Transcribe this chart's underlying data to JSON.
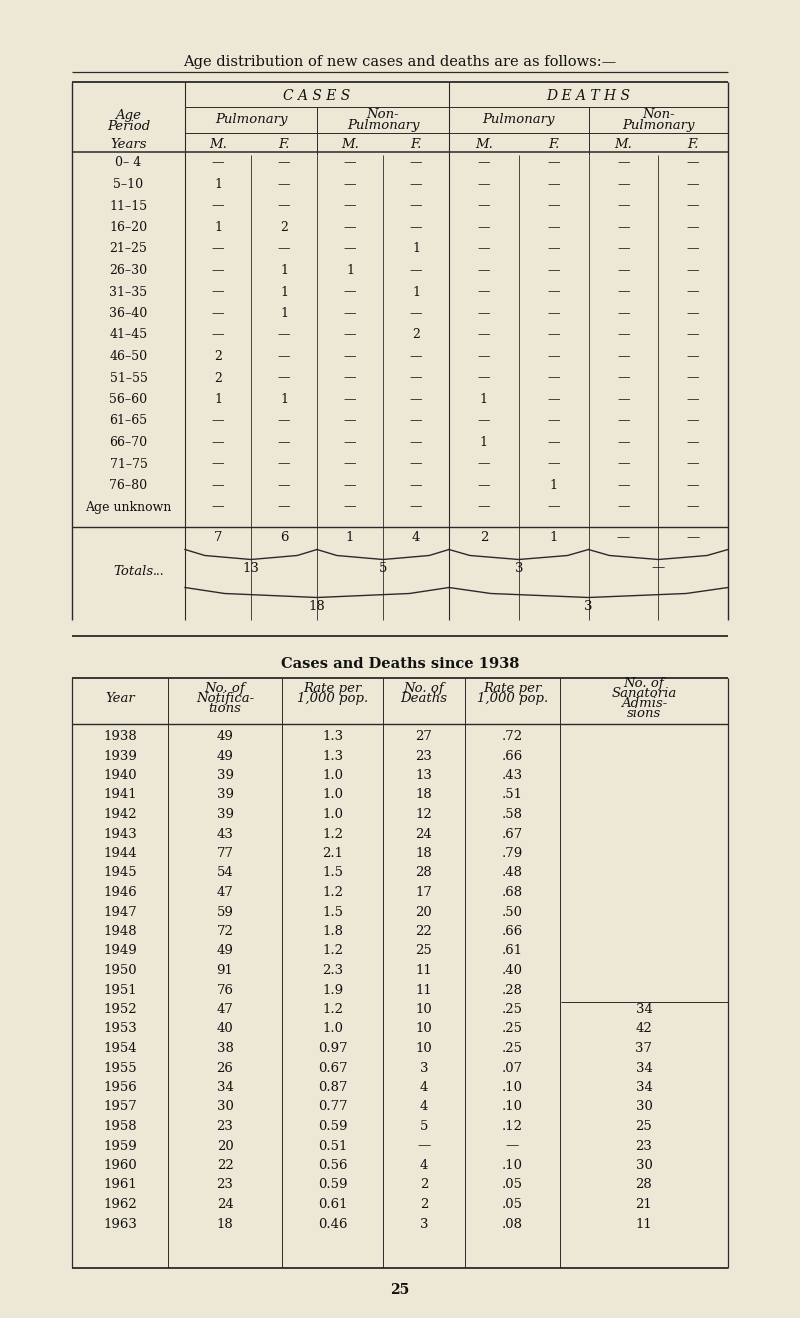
{
  "bg_color": "#ede8d5",
  "title_text": "Age distribution of new cases and deaths are as follows:—",
  "section2_title": "Cases and Deaths since 1938",
  "page_number": "25",
  "age_rows": [
    "0– 4",
    "5–10",
    "11–15",
    "16–20",
    "21–25",
    "26–30",
    "31–35",
    "36–40",
    "41–45",
    "46–50",
    "51–55",
    "56–60",
    "61–65",
    "66–70",
    "71–75",
    "76–80",
    "Age unknown"
  ],
  "cases_pulm_m": [
    "—",
    "1",
    "—",
    "1",
    "—",
    "—",
    "—",
    "—",
    "—",
    "2",
    "2",
    "1",
    "—",
    "—",
    "—",
    "—",
    "—"
  ],
  "cases_pulm_f": [
    "—",
    "—",
    "—",
    "2",
    "—",
    "1",
    "1",
    "1",
    "—",
    "—",
    "—",
    "1",
    "—",
    "—",
    "—",
    "—",
    "—"
  ],
  "cases_nonpulm_m": [
    "—",
    "—",
    "—",
    "—",
    "—",
    "1",
    "—",
    "—",
    "—",
    "—",
    "—",
    "—",
    "—",
    "—",
    "—",
    "—",
    "—"
  ],
  "cases_nonpulm_f": [
    "—",
    "—",
    "—",
    "—",
    "1",
    "—",
    "1",
    "—",
    "2",
    "—",
    "—",
    "—",
    "—",
    "—",
    "—",
    "—",
    "—"
  ],
  "deaths_pulm_m": [
    "—",
    "—",
    "—",
    "—",
    "—",
    "—",
    "—",
    "—",
    "—",
    "—",
    "—",
    "1",
    "—",
    "1",
    "—",
    "—",
    "—"
  ],
  "deaths_pulm_f": [
    "—",
    "—",
    "—",
    "—",
    "—",
    "—",
    "—",
    "—",
    "—",
    "—",
    "—",
    "—",
    "—",
    "—",
    "—",
    "1",
    "—"
  ],
  "deaths_nonpulm_m": [
    "—",
    "—",
    "—",
    "—",
    "—",
    "—",
    "—",
    "—",
    "—",
    "—",
    "—",
    "—",
    "—",
    "—",
    "—",
    "—",
    "—"
  ],
  "deaths_nonpulm_f": [
    "—",
    "—",
    "—",
    "—",
    "—",
    "—",
    "—",
    "—",
    "—",
    "—",
    "—",
    "—",
    "—",
    "—",
    "—",
    "—",
    "—"
  ],
  "totals_row": [
    "7",
    "6",
    "1",
    "4",
    "2",
    "1",
    "—",
    "—"
  ],
  "totals_sub1_cases_pulm": "13",
  "totals_sub1_cases_nonpulm": "5",
  "totals_sub1_deaths_pulm": "3",
  "totals_sub1_deaths_nonpulm": "—",
  "totals_sub2_cases": "18",
  "totals_sub2_deaths": "3",
  "years": [
    1938,
    1939,
    1940,
    1941,
    1942,
    1943,
    1944,
    1945,
    1946,
    1947,
    1948,
    1949,
    1950,
    1951,
    1952,
    1953,
    1954,
    1955,
    1956,
    1957,
    1958,
    1959,
    1960,
    1961,
    1962,
    1963
  ],
  "notif": [
    49,
    49,
    39,
    39,
    39,
    43,
    77,
    54,
    47,
    59,
    72,
    49,
    91,
    76,
    47,
    40,
    38,
    26,
    34,
    30,
    23,
    20,
    22,
    23,
    24,
    18
  ],
  "rate_notif": [
    "1.3",
    "1.3",
    "1.0",
    "1.0",
    "1.0",
    "1.2",
    "2.1",
    "1.5",
    "1.2",
    "1.5",
    "1.8",
    "1.2",
    "2.3",
    "1.9",
    "1.2",
    "1.0",
    "0.97",
    "0.67",
    "0.87",
    "0.77",
    "0.59",
    "0.51",
    "0.56",
    "0.59",
    "0.61",
    "0.46"
  ],
  "deaths": [
    "27",
    "23",
    "13",
    "18",
    "12",
    "24",
    "18",
    "28",
    "17",
    "20",
    "22",
    "25",
    "11",
    "11",
    "10",
    "10",
    "10",
    "3",
    "4",
    "4",
    "5",
    "—",
    "4",
    "2",
    "2",
    "3"
  ],
  "rate_deaths": [
    ".72",
    ".66",
    ".43",
    ".51",
    ".58",
    ".67",
    ".79",
    ".48",
    ".68",
    ".50",
    ".66",
    ".61",
    ".40",
    ".28",
    ".25",
    ".25",
    ".25",
    ".07",
    ".10",
    ".10",
    ".12",
    "—",
    ".10",
    ".05",
    ".05",
    ".08"
  ],
  "sanatoria": [
    "",
    "",
    "",
    "",
    "",
    "",
    "",
    "",
    "",
    "",
    "",
    "",
    "",
    "",
    "34",
    "42",
    "37",
    "34",
    "34",
    "30",
    "25",
    "23",
    "30",
    "28",
    "21",
    "11"
  ]
}
